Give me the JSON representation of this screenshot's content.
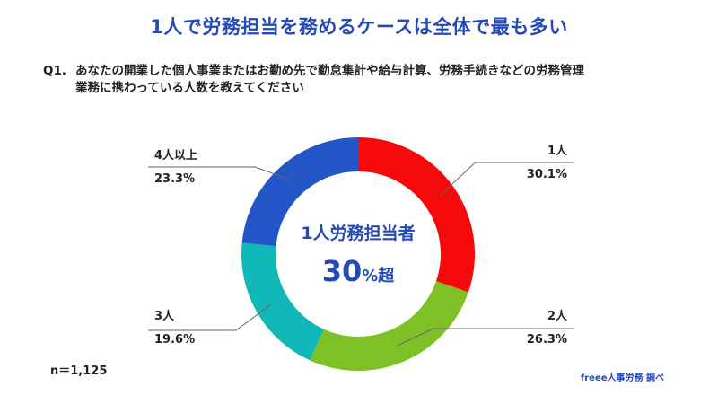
{
  "title": "1人で労務担当を務めるケースは全体で最も多い",
  "question": {
    "label": "Q1.",
    "line1": "あなたの開業した個人事業またはお勤め先で勤怠集計や給与計算、労務手続きなどの労務管理",
    "line2": "業務に携わっている人数を教えてください"
  },
  "center": {
    "line1": "1人労務担当者",
    "big": "30",
    "suffix": "%超"
  },
  "sample": "n＝1,125",
  "source": "freee人事労務 調べ",
  "chart_data": {
    "type": "pie",
    "donut": true,
    "categories": [
      "1人",
      "2人",
      "3人",
      "4人以上"
    ],
    "values": [
      30.1,
      26.3,
      19.6,
      23.3
    ],
    "labels": [
      "30.1%",
      "26.3%",
      "19.6%",
      "23.3%"
    ],
    "colors": [
      "#f40a0a",
      "#7ec126",
      "#12b8b8",
      "#2456c8"
    ],
    "start": "12 o'clock",
    "direction": "clockwise"
  }
}
